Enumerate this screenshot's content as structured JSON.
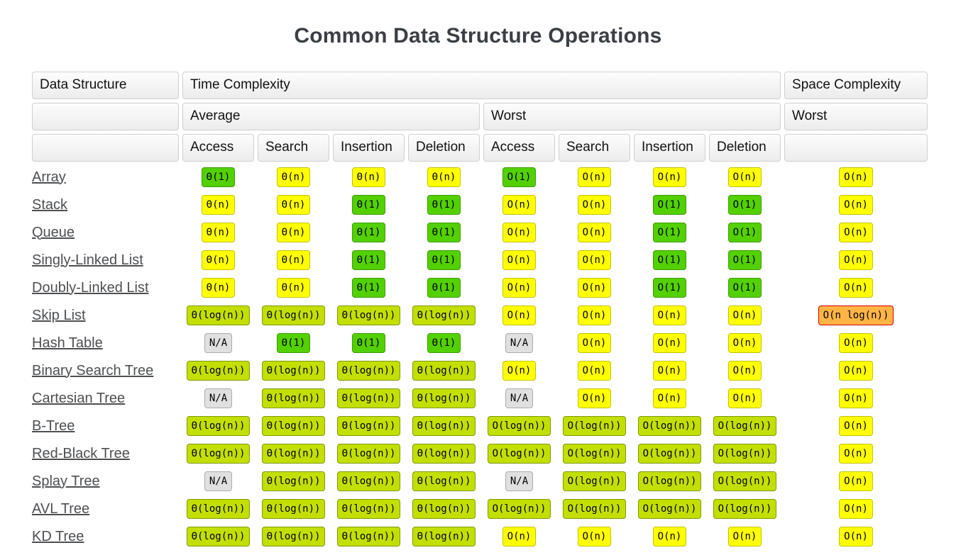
{
  "title": "Common Data Structure Operations",
  "table": {
    "header": {
      "data_structure": "Data Structure",
      "time_complexity": "Time Complexity",
      "space_complexity": "Space Complexity",
      "average": "Average",
      "worst": "Worst",
      "space_worst": "Worst",
      "operations": [
        "Access",
        "Search",
        "Insertion",
        "Deletion",
        "Access",
        "Search",
        "Insertion",
        "Deletion"
      ]
    },
    "colors": {
      "excellent": "#53d000",
      "good": "#c3df00",
      "fair": "#ffff00",
      "bad": "#ffb446",
      "bad_border": "#d40000",
      "na": "#e0e0e0"
    },
    "rows": [
      {
        "name": "Array",
        "cells": [
          {
            "t": "Θ(1)",
            "c": "green"
          },
          {
            "t": "Θ(n)",
            "c": "yellow"
          },
          {
            "t": "Θ(n)",
            "c": "yellow"
          },
          {
            "t": "Θ(n)",
            "c": "yellow"
          },
          {
            "t": "O(1)",
            "c": "green"
          },
          {
            "t": "O(n)",
            "c": "yellow"
          },
          {
            "t": "O(n)",
            "c": "yellow"
          },
          {
            "t": "O(n)",
            "c": "yellow"
          },
          {
            "t": "O(n)",
            "c": "yellow"
          }
        ]
      },
      {
        "name": "Stack",
        "cells": [
          {
            "t": "Θ(n)",
            "c": "yellow"
          },
          {
            "t": "Θ(n)",
            "c": "yellow"
          },
          {
            "t": "Θ(1)",
            "c": "green"
          },
          {
            "t": "Θ(1)",
            "c": "green"
          },
          {
            "t": "O(n)",
            "c": "yellow"
          },
          {
            "t": "O(n)",
            "c": "yellow"
          },
          {
            "t": "O(1)",
            "c": "green"
          },
          {
            "t": "O(1)",
            "c": "green"
          },
          {
            "t": "O(n)",
            "c": "yellow"
          }
        ]
      },
      {
        "name": "Queue",
        "cells": [
          {
            "t": "Θ(n)",
            "c": "yellow"
          },
          {
            "t": "Θ(n)",
            "c": "yellow"
          },
          {
            "t": "Θ(1)",
            "c": "green"
          },
          {
            "t": "Θ(1)",
            "c": "green"
          },
          {
            "t": "O(n)",
            "c": "yellow"
          },
          {
            "t": "O(n)",
            "c": "yellow"
          },
          {
            "t": "O(1)",
            "c": "green"
          },
          {
            "t": "O(1)",
            "c": "green"
          },
          {
            "t": "O(n)",
            "c": "yellow"
          }
        ]
      },
      {
        "name": "Singly-Linked List",
        "cells": [
          {
            "t": "Θ(n)",
            "c": "yellow"
          },
          {
            "t": "Θ(n)",
            "c": "yellow"
          },
          {
            "t": "Θ(1)",
            "c": "green"
          },
          {
            "t": "Θ(1)",
            "c": "green"
          },
          {
            "t": "O(n)",
            "c": "yellow"
          },
          {
            "t": "O(n)",
            "c": "yellow"
          },
          {
            "t": "O(1)",
            "c": "green"
          },
          {
            "t": "O(1)",
            "c": "green"
          },
          {
            "t": "O(n)",
            "c": "yellow"
          }
        ]
      },
      {
        "name": "Doubly-Linked List",
        "cells": [
          {
            "t": "Θ(n)",
            "c": "yellow"
          },
          {
            "t": "Θ(n)",
            "c": "yellow"
          },
          {
            "t": "Θ(1)",
            "c": "green"
          },
          {
            "t": "Θ(1)",
            "c": "green"
          },
          {
            "t": "O(n)",
            "c": "yellow"
          },
          {
            "t": "O(n)",
            "c": "yellow"
          },
          {
            "t": "O(1)",
            "c": "green"
          },
          {
            "t": "O(1)",
            "c": "green"
          },
          {
            "t": "O(n)",
            "c": "yellow"
          }
        ]
      },
      {
        "name": "Skip List",
        "cells": [
          {
            "t": "Θ(log(n))",
            "c": "lime"
          },
          {
            "t": "Θ(log(n))",
            "c": "lime"
          },
          {
            "t": "Θ(log(n))",
            "c": "lime"
          },
          {
            "t": "Θ(log(n))",
            "c": "lime"
          },
          {
            "t": "O(n)",
            "c": "yellow"
          },
          {
            "t": "O(n)",
            "c": "yellow"
          },
          {
            "t": "O(n)",
            "c": "yellow"
          },
          {
            "t": "O(n)",
            "c": "yellow"
          },
          {
            "t": "O(n log(n))",
            "c": "orange"
          }
        ]
      },
      {
        "name": "Hash Table",
        "cells": [
          {
            "t": "N/A",
            "c": "gray"
          },
          {
            "t": "Θ(1)",
            "c": "green"
          },
          {
            "t": "Θ(1)",
            "c": "green"
          },
          {
            "t": "Θ(1)",
            "c": "green"
          },
          {
            "t": "N/A",
            "c": "gray"
          },
          {
            "t": "O(n)",
            "c": "yellow"
          },
          {
            "t": "O(n)",
            "c": "yellow"
          },
          {
            "t": "O(n)",
            "c": "yellow"
          },
          {
            "t": "O(n)",
            "c": "yellow"
          }
        ]
      },
      {
        "name": "Binary Search Tree",
        "cells": [
          {
            "t": "Θ(log(n))",
            "c": "lime"
          },
          {
            "t": "Θ(log(n))",
            "c": "lime"
          },
          {
            "t": "Θ(log(n))",
            "c": "lime"
          },
          {
            "t": "Θ(log(n))",
            "c": "lime"
          },
          {
            "t": "O(n)",
            "c": "yellow"
          },
          {
            "t": "O(n)",
            "c": "yellow"
          },
          {
            "t": "O(n)",
            "c": "yellow"
          },
          {
            "t": "O(n)",
            "c": "yellow"
          },
          {
            "t": "O(n)",
            "c": "yellow"
          }
        ]
      },
      {
        "name": "Cartesian Tree",
        "cells": [
          {
            "t": "N/A",
            "c": "gray"
          },
          {
            "t": "Θ(log(n))",
            "c": "lime"
          },
          {
            "t": "Θ(log(n))",
            "c": "lime"
          },
          {
            "t": "Θ(log(n))",
            "c": "lime"
          },
          {
            "t": "N/A",
            "c": "gray"
          },
          {
            "t": "O(n)",
            "c": "yellow"
          },
          {
            "t": "O(n)",
            "c": "yellow"
          },
          {
            "t": "O(n)",
            "c": "yellow"
          },
          {
            "t": "O(n)",
            "c": "yellow"
          }
        ]
      },
      {
        "name": "B-Tree",
        "cells": [
          {
            "t": "Θ(log(n))",
            "c": "lime"
          },
          {
            "t": "Θ(log(n))",
            "c": "lime"
          },
          {
            "t": "Θ(log(n))",
            "c": "lime"
          },
          {
            "t": "Θ(log(n))",
            "c": "lime"
          },
          {
            "t": "O(log(n))",
            "c": "lime"
          },
          {
            "t": "O(log(n))",
            "c": "lime"
          },
          {
            "t": "O(log(n))",
            "c": "lime"
          },
          {
            "t": "O(log(n))",
            "c": "lime"
          },
          {
            "t": "O(n)",
            "c": "yellow"
          }
        ]
      },
      {
        "name": "Red-Black Tree",
        "cells": [
          {
            "t": "Θ(log(n))",
            "c": "lime"
          },
          {
            "t": "Θ(log(n))",
            "c": "lime"
          },
          {
            "t": "Θ(log(n))",
            "c": "lime"
          },
          {
            "t": "Θ(log(n))",
            "c": "lime"
          },
          {
            "t": "O(log(n))",
            "c": "lime"
          },
          {
            "t": "O(log(n))",
            "c": "lime"
          },
          {
            "t": "O(log(n))",
            "c": "lime"
          },
          {
            "t": "O(log(n))",
            "c": "lime"
          },
          {
            "t": "O(n)",
            "c": "yellow"
          }
        ]
      },
      {
        "name": "Splay Tree",
        "cells": [
          {
            "t": "N/A",
            "c": "gray"
          },
          {
            "t": "Θ(log(n))",
            "c": "lime"
          },
          {
            "t": "Θ(log(n))",
            "c": "lime"
          },
          {
            "t": "Θ(log(n))",
            "c": "lime"
          },
          {
            "t": "N/A",
            "c": "gray"
          },
          {
            "t": "O(log(n))",
            "c": "lime"
          },
          {
            "t": "O(log(n))",
            "c": "lime"
          },
          {
            "t": "O(log(n))",
            "c": "lime"
          },
          {
            "t": "O(n)",
            "c": "yellow"
          }
        ]
      },
      {
        "name": "AVL Tree",
        "cells": [
          {
            "t": "Θ(log(n))",
            "c": "lime"
          },
          {
            "t": "Θ(log(n))",
            "c": "lime"
          },
          {
            "t": "Θ(log(n))",
            "c": "lime"
          },
          {
            "t": "Θ(log(n))",
            "c": "lime"
          },
          {
            "t": "O(log(n))",
            "c": "lime"
          },
          {
            "t": "O(log(n))",
            "c": "lime"
          },
          {
            "t": "O(log(n))",
            "c": "lime"
          },
          {
            "t": "O(log(n))",
            "c": "lime"
          },
          {
            "t": "O(n)",
            "c": "yellow"
          }
        ]
      },
      {
        "name": "KD Tree",
        "cells": [
          {
            "t": "Θ(log(n))",
            "c": "lime"
          },
          {
            "t": "Θ(log(n))",
            "c": "lime"
          },
          {
            "t": "Θ(log(n))",
            "c": "lime"
          },
          {
            "t": "Θ(log(n))",
            "c": "lime"
          },
          {
            "t": "O(n)",
            "c": "yellow"
          },
          {
            "t": "O(n)",
            "c": "yellow"
          },
          {
            "t": "O(n)",
            "c": "yellow"
          },
          {
            "t": "O(n)",
            "c": "yellow"
          },
          {
            "t": "O(n)",
            "c": "yellow"
          }
        ]
      }
    ]
  }
}
